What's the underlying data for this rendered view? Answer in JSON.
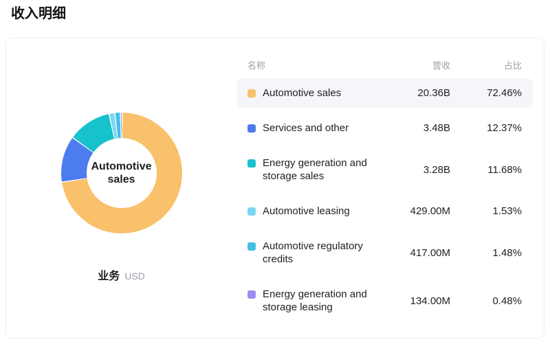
{
  "page": {
    "title": "收入明细"
  },
  "table": {
    "headers": {
      "name": "名称",
      "revenue": "营收",
      "share": "占比"
    }
  },
  "chart_data": {
    "type": "pie",
    "title": "收入明细",
    "center_label": "Automotive sales",
    "footer": {
      "label": "业务",
      "unit": "USD"
    },
    "donut": {
      "inner_radius_ratio": 0.58,
      "start_angle_deg": 0,
      "direction": "clockwise"
    },
    "highlighted_index": 0,
    "legend_position": "right-table",
    "series": [
      {
        "name": "Automotive sales",
        "revenue": "20.36B",
        "percent": 72.46,
        "share": "72.46%",
        "color": "#F9C16B"
      },
      {
        "name": "Services and other",
        "revenue": "3.48B",
        "percent": 12.37,
        "share": "12.37%",
        "color": "#4D7BF0"
      },
      {
        "name": "Energy generation and storage sales",
        "revenue": "3.28B",
        "percent": 11.68,
        "share": "11.68%",
        "color": "#16C2CC"
      },
      {
        "name": "Automotive leasing",
        "revenue": "429.00M",
        "percent": 1.53,
        "share": "1.53%",
        "color": "#7DD7F4"
      },
      {
        "name": "Automotive regulatory credits",
        "revenue": "417.00M",
        "percent": 1.48,
        "share": "1.48%",
        "color": "#45BEE8"
      },
      {
        "name": "Energy generation and storage leasing",
        "revenue": "134.00M",
        "percent": 0.48,
        "share": "0.48%",
        "color": "#9C8DF2"
      }
    ]
  }
}
